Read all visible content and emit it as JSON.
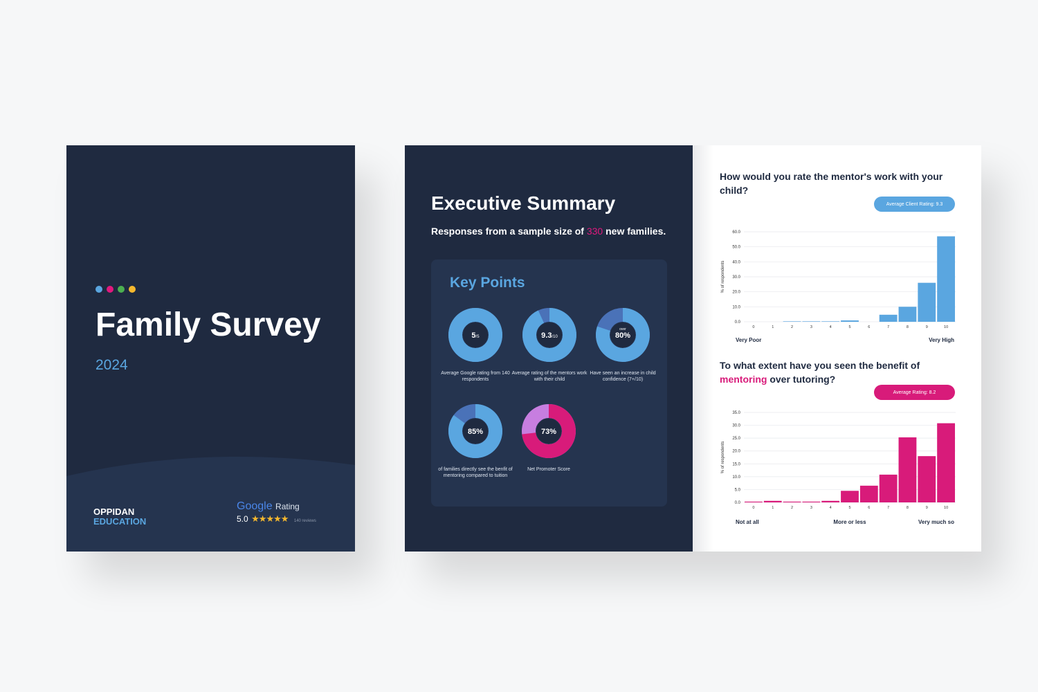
{
  "cover": {
    "dots": [
      "#5aa6e0",
      "#e0197d",
      "#4caf50",
      "#f5b82e"
    ],
    "title": "Family Survey",
    "year": "2024",
    "brand_line1": "OPPIDAN",
    "brand_line2": "EDUCATION",
    "google": "Google",
    "rating_label": "Rating",
    "rating_value": "5.0",
    "stars": 5,
    "reviews": "140 reviews"
  },
  "summary": {
    "title": "Executive Summary",
    "subtitle_pre": "Responses from a sample size of ",
    "sample_size": "330",
    "subtitle_post": " new families.",
    "key_points_title": "Key Points",
    "donuts": [
      {
        "value_main": "5",
        "value_suffix": "/5",
        "top_label": "",
        "fraction": 1.0,
        "color": "#5aa6e0",
        "rest_color": "#4a72b8",
        "caption": "Average Google rating from 140 respondents"
      },
      {
        "value_main": "9.3",
        "value_suffix": "/10",
        "top_label": "",
        "fraction": 0.93,
        "color": "#5aa6e0",
        "rest_color": "#4a72b8",
        "caption": "Average rating of the mentors work with their child"
      },
      {
        "value_main": "80%",
        "value_suffix": "",
        "top_label": "over",
        "fraction": 0.8,
        "color": "#5aa6e0",
        "rest_color": "#4a72b8",
        "caption": "Have seen an increase in child confidence (7+/10)"
      },
      {
        "value_main": "85%",
        "value_suffix": "",
        "top_label": "",
        "fraction": 0.85,
        "color": "#5aa6e0",
        "rest_color": "#4a72b8",
        "caption": "of families directly see the benfit of mentoring compared to tuition"
      },
      {
        "value_main": "73%",
        "value_suffix": "",
        "top_label": "",
        "fraction": 0.73,
        "color": "#d81b7a",
        "rest_color": "#c77ee0",
        "caption": "Net Promoter Score"
      }
    ]
  },
  "chart_data": [
    {
      "type": "bar",
      "title": "How would you rate the mentor's work with your child?",
      "badge": "Average Client Rating: 9.3",
      "ylabel": "% of respondents",
      "categories": [
        "0",
        "1",
        "2",
        "3",
        "4",
        "5",
        "6",
        "7",
        "8",
        "9",
        "10"
      ],
      "values": [
        0,
        0,
        0.3,
        0.3,
        0.3,
        0.9,
        0,
        4.7,
        10,
        26,
        57
      ],
      "ylim": [
        0,
        60
      ],
      "yticks": [
        "0.0",
        "10.0",
        "20.0",
        "30.0",
        "40.0",
        "50.0",
        "60.0"
      ],
      "end_labels": [
        "Very Poor",
        "",
        "Very High"
      ],
      "color": "#5aa6e0",
      "grid": true
    },
    {
      "type": "bar",
      "title_pre": "To what extent have you seen the benefit of ",
      "title_highlight": "mentoring",
      "title_post": " over tutoring?",
      "badge": "Average Rating: 8.2",
      "ylabel": "% of respondents",
      "categories": [
        "0",
        "1",
        "2",
        "3",
        "4",
        "5",
        "6",
        "7",
        "8",
        "9",
        "10"
      ],
      "values": [
        0.3,
        0.6,
        0.3,
        0.3,
        0.6,
        4.5,
        6.5,
        10.8,
        25.3,
        18,
        30.8
      ],
      "ylim": [
        0,
        35
      ],
      "yticks": [
        "0.0",
        "5.0",
        "10.0",
        "15.0",
        "20.0",
        "25.0",
        "30.0",
        "35.0"
      ],
      "end_labels": [
        "Not at all",
        "More or less",
        "Very much so"
      ],
      "color": "#d81b7a",
      "grid": true
    }
  ]
}
